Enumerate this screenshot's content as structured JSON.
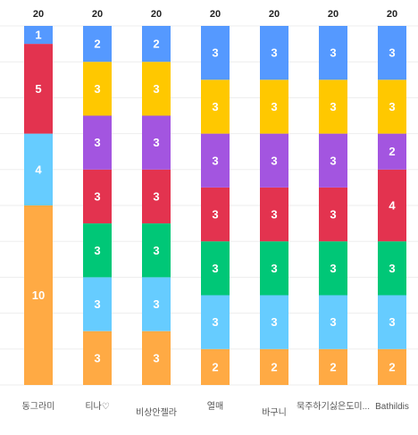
{
  "chart_data": {
    "type": "bar",
    "stacked": true,
    "categories": [
      "동그라미",
      "티나♡",
      "비상안젤라",
      "열매",
      "바구니",
      "묵주하기싫은도미...",
      "Bathildis"
    ],
    "category_label_rows": [
      1,
      1,
      2,
      1,
      2,
      1,
      1
    ],
    "totals": [
      20,
      20,
      20,
      20,
      20,
      20,
      20
    ],
    "ylim": [
      0,
      20
    ],
    "grid": true,
    "legend": "none",
    "series": [
      {
        "color": "#FFAA44",
        "values": [
          10,
          3,
          3,
          2,
          2,
          2,
          2
        ]
      },
      {
        "color": "#66CCFF",
        "values": [
          4,
          3,
          3,
          3,
          3,
          3,
          3
        ]
      },
      {
        "color": "#00C777",
        "values": [
          0,
          3,
          3,
          3,
          3,
          3,
          3
        ]
      },
      {
        "color": "#E3334F",
        "values": [
          5,
          3,
          3,
          3,
          3,
          3,
          4
        ]
      },
      {
        "color": "#A355E0",
        "values": [
          0,
          3,
          3,
          3,
          3,
          3,
          2
        ]
      },
      {
        "color": "#FFC800",
        "values": [
          0,
          3,
          3,
          3,
          3,
          3,
          3
        ]
      },
      {
        "color": "#5599FF",
        "values": [
          1,
          2,
          2,
          3,
          3,
          3,
          3
        ]
      }
    ]
  }
}
